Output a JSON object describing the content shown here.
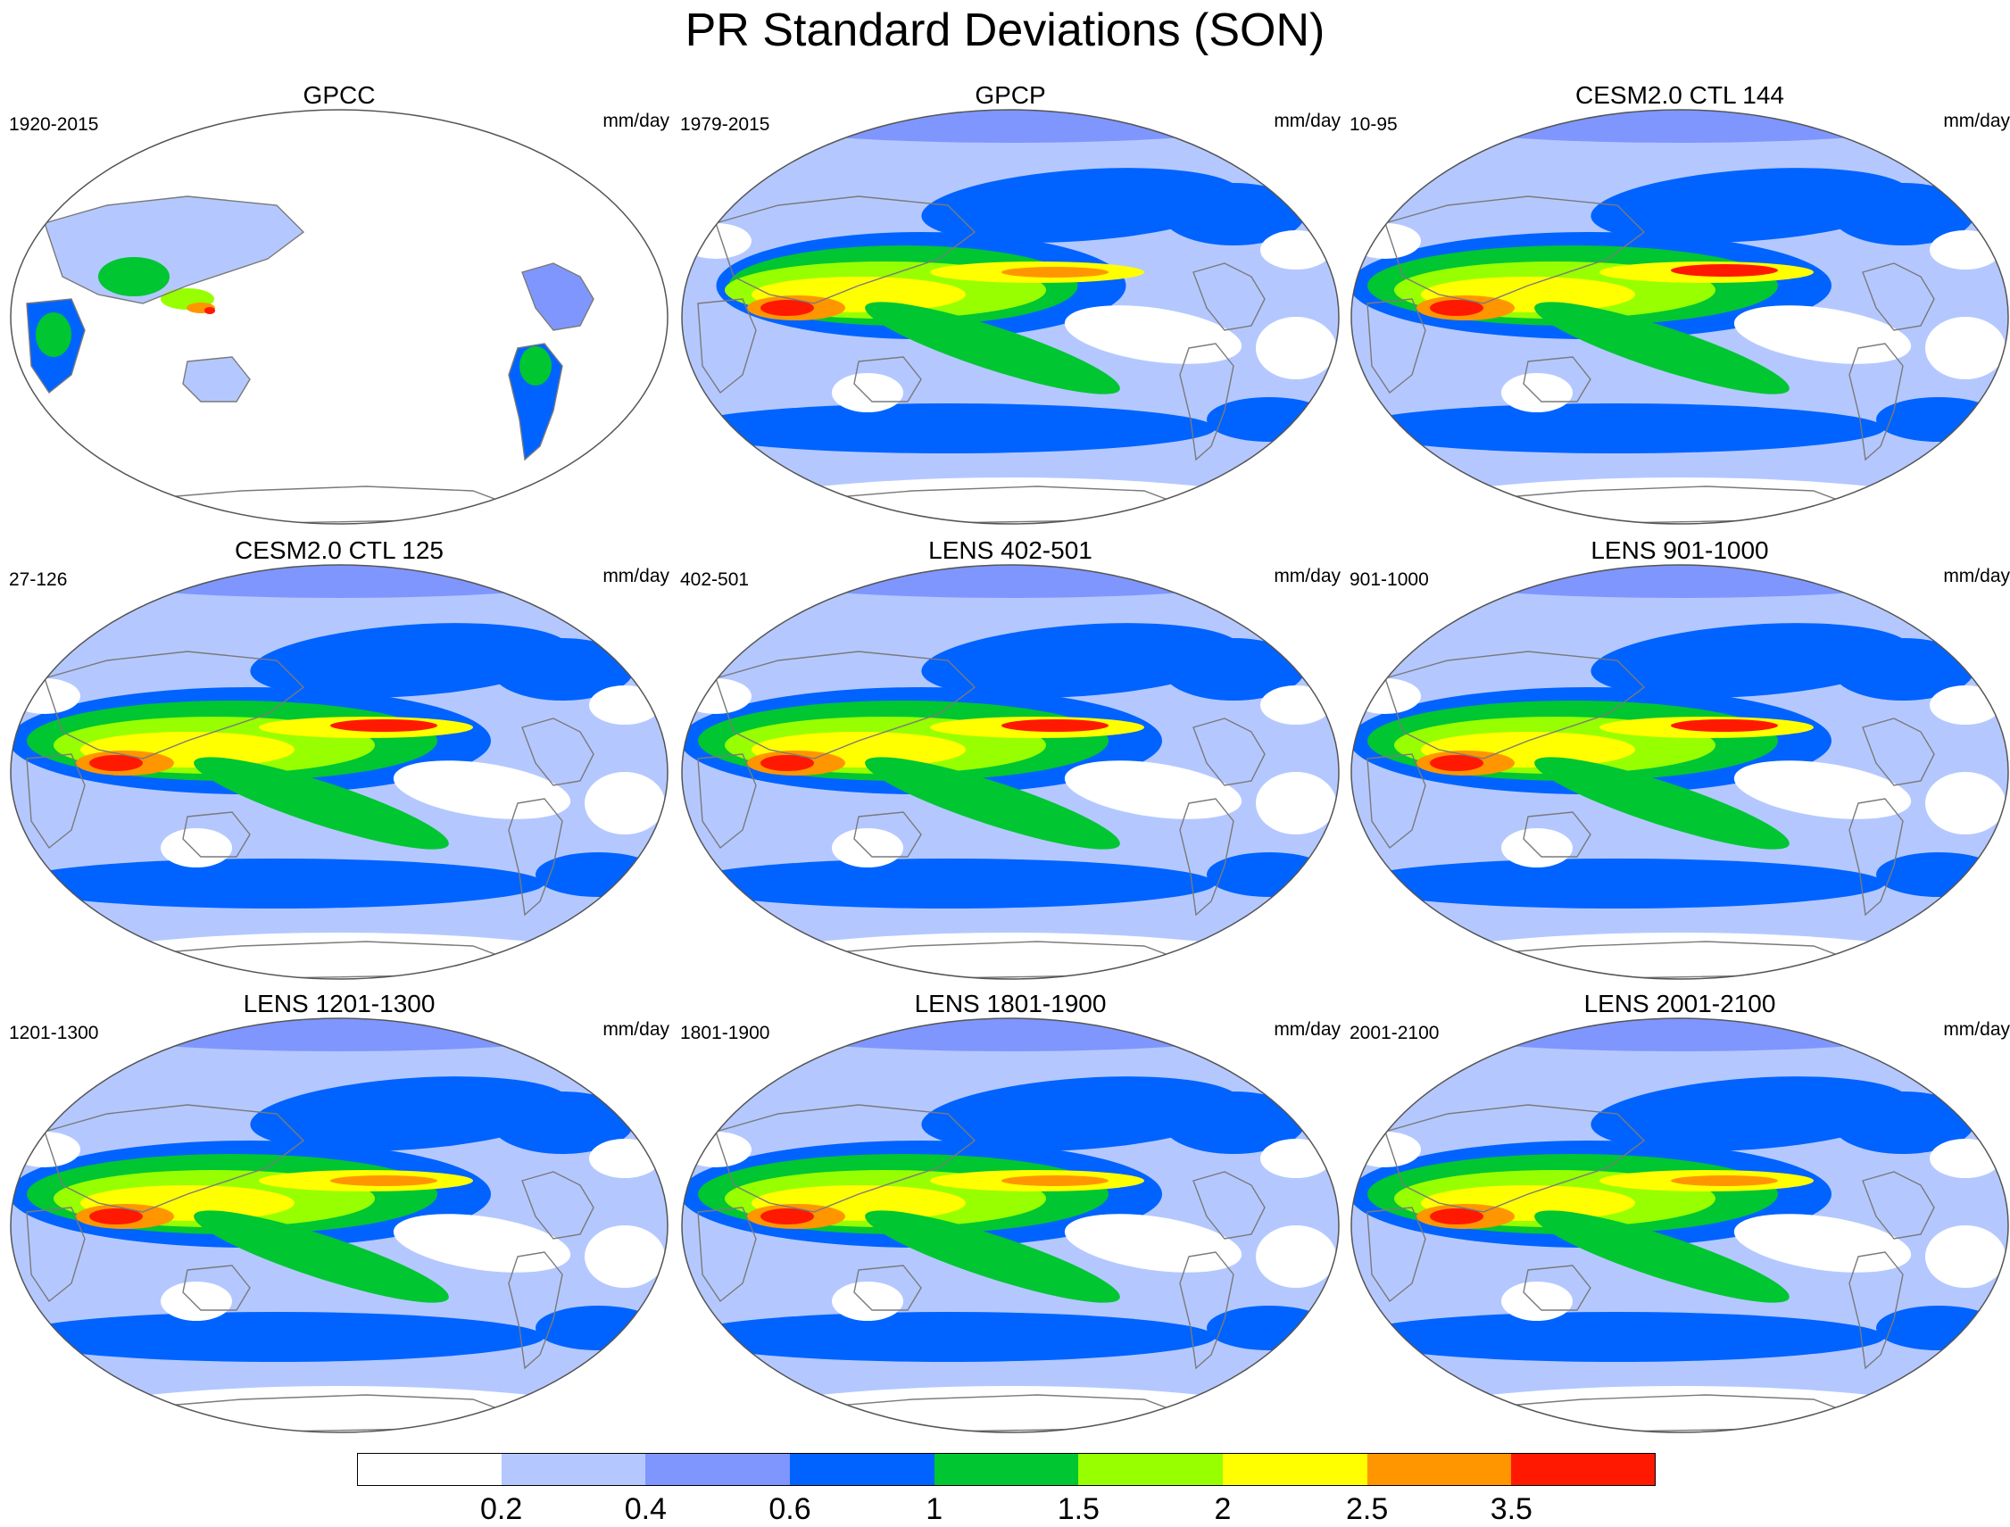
{
  "title": "PR Standard Deviations (SON)",
  "colors": {
    "c0": "#ffffff",
    "c1": "#b4c8ff",
    "c2": "#7f96ff",
    "c3": "#0063ff",
    "c4": "#00c632",
    "c5": "#97ff00",
    "c6": "#ffff00",
    "c7": "#ff9600",
    "c8": "#ff1900",
    "land_outline": "#7a7a7a"
  },
  "colorbar": {
    "colors": [
      "#ffffff",
      "#b4c8ff",
      "#7f96ff",
      "#0063ff",
      "#00c632",
      "#97ff00",
      "#ffff00",
      "#ff9600",
      "#ff1900"
    ],
    "labels": [
      "0.2",
      "0.4",
      "0.6",
      "1",
      "1.5",
      "2",
      "2.5",
      "3.5"
    ]
  },
  "panels": [
    {
      "title": "GPCC",
      "period": "1920-2015",
      "units": "mm/day",
      "kind": "land"
    },
    {
      "title": "GPCP",
      "period": "1979-2015",
      "units": "mm/day",
      "kind": "obs"
    },
    {
      "title": "CESM2.0 CTL 144",
      "period": "10-95",
      "units": "mm/day",
      "kind": "model"
    },
    {
      "title": "CESM2.0 CTL 125",
      "period": "27-126",
      "units": "mm/day",
      "kind": "model"
    },
    {
      "title": "LENS 402-501",
      "period": "402-501",
      "units": "mm/day",
      "kind": "model"
    },
    {
      "title": "LENS 901-1000",
      "period": "901-1000",
      "units": "mm/day",
      "kind": "model"
    },
    {
      "title": "LENS 1201-1300",
      "period": "1201-1300",
      "units": "mm/day",
      "kind": "model"
    },
    {
      "title": "LENS 1801-1900",
      "period": "1801-1900",
      "units": "mm/day",
      "kind": "model"
    },
    {
      "title": "LENS 2001-2100",
      "period": "2001-2100",
      "units": "mm/day",
      "kind": "model"
    }
  ]
}
